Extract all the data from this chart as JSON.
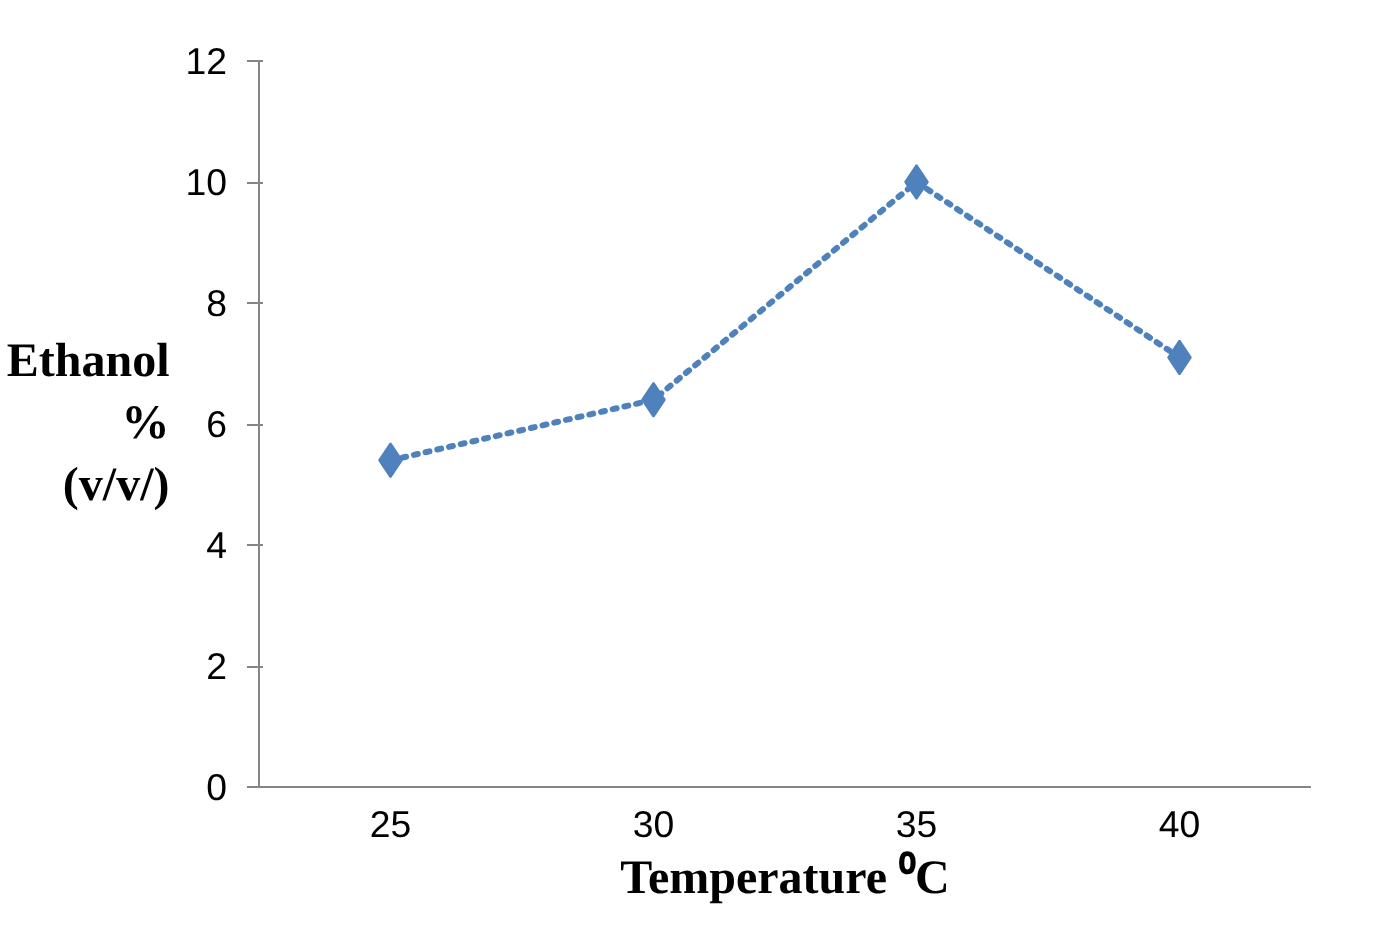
{
  "chart_data": {
    "type": "line",
    "xlabel": "Temperature ⁰C",
    "ylabel": "Ethanol % (v/v/)",
    "categories": [
      "25",
      "30",
      "35",
      "40"
    ],
    "series": [
      {
        "color": "#4f81bd",
        "values": [
          5.4,
          6.4,
          10,
          7.1
        ]
      }
    ],
    "ylim": [
      0,
      12
    ],
    "yticks": [
      0,
      2,
      4,
      6,
      8,
      10,
      12
    ],
    "grid": false,
    "marker": "diamond",
    "line_style": "dotted"
  }
}
